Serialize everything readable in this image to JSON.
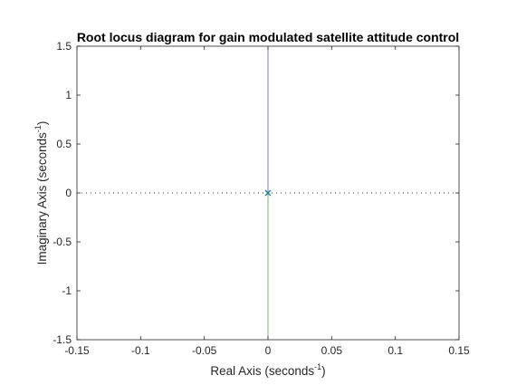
{
  "chart_data": {
    "type": "line",
    "title": "Root locus diagram for gain modulated satellite attitude control",
    "xlabel": {
      "main": "Real Axis (seconds",
      "exp": "-1",
      "close": ")"
    },
    "ylabel": {
      "main": "Imaginary Axis (seconds",
      "exp": "-1",
      "close": ")"
    },
    "xlim": [
      -0.15,
      0.15
    ],
    "ylim": [
      -1.5,
      1.5
    ],
    "xticks": [
      -0.15,
      -0.1,
      -0.05,
      0,
      0.05,
      0.1,
      0.15
    ],
    "xtick_labels": [
      "-0.15",
      "-0.1",
      "-0.05",
      "0",
      "0.05",
      "0.1",
      "0.15"
    ],
    "yticks": [
      1.5,
      1,
      0.5,
      0,
      -0.5,
      -1,
      -1.5
    ],
    "ytick_labels": [
      "1.5",
      "1",
      "0.5",
      "0",
      "-0.5",
      "-1",
      "-1.5"
    ],
    "grid": false,
    "series": [
      {
        "color": "#4b5ce0",
        "x": [
          0,
          0
        ],
        "y": [
          0,
          1.5
        ]
      },
      {
        "color": "#55a64e",
        "x": [
          0,
          0
        ],
        "y": [
          0,
          -1.5
        ]
      }
    ],
    "poles": [
      {
        "x": 0,
        "y": 0
      }
    ],
    "pole_marker_color": "#1f7a8c",
    "zero_line_color": "#333333"
  }
}
